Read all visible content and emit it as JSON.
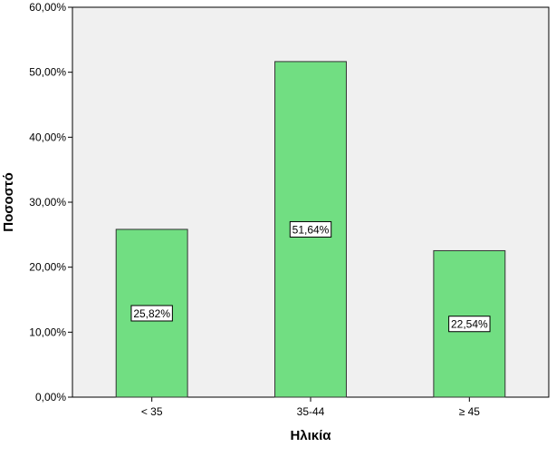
{
  "chart_data": {
    "type": "bar",
    "categories": [
      "< 35",
      "35-44",
      "≥ 45"
    ],
    "values": [
      25.82,
      51.64,
      22.54
    ],
    "value_labels": [
      "25,82%",
      "51,64%",
      "22,54%"
    ],
    "title": "",
    "xlabel": "Ηλικία",
    "ylabel": "Ποσοστό",
    "ylim": [
      0,
      60
    ],
    "yticks": [
      0,
      10,
      20,
      30,
      40,
      50,
      60
    ],
    "ytick_labels": [
      "0,00%",
      "10,00%",
      "20,00%",
      "30,00%",
      "40,00%",
      "50,00%",
      "60,00%"
    ],
    "grid": false,
    "legend": "none",
    "colors": {
      "bar_fill": "#71de82",
      "bar_stroke": "#333333",
      "plot_background": "#f0f0f0",
      "axis": "#000000"
    }
  }
}
